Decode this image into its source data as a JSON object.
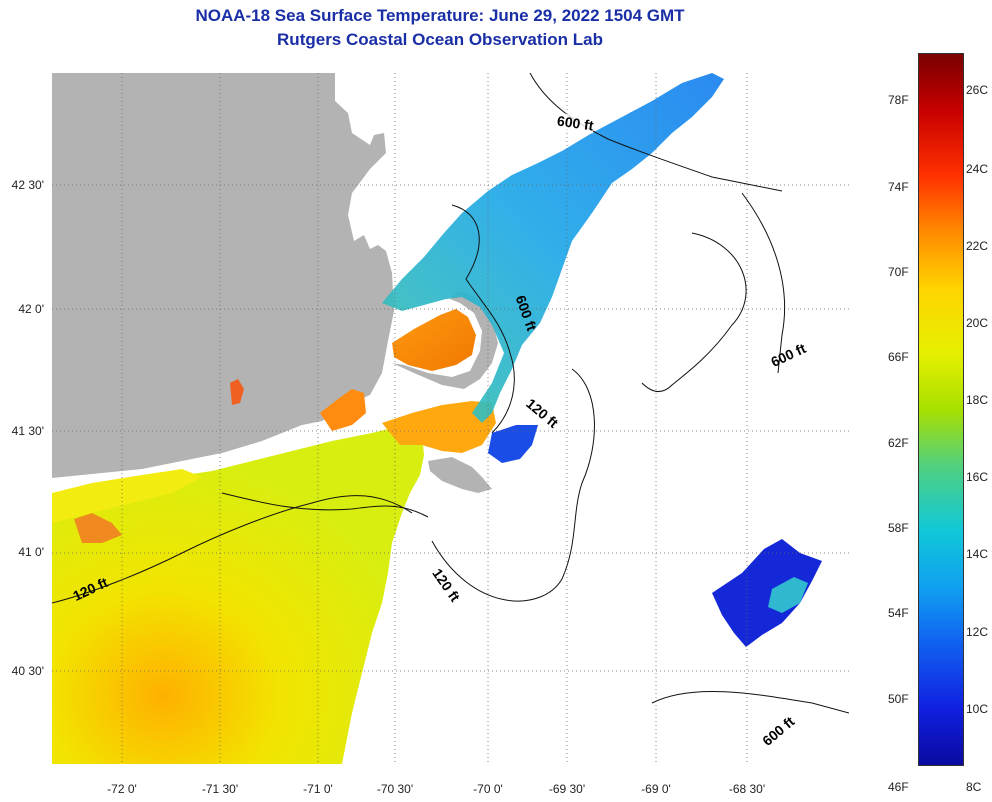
{
  "header": {
    "title": "NOAA-18 Sea Surface Temperature:  June 29, 2022 1504 GMT",
    "subtitle": "Rutgers Coastal Ocean Observation Lab"
  },
  "axes": {
    "lat_labels": [
      "42 30'",
      "42 0'",
      "41 30'",
      "41 0'",
      "40 30'"
    ],
    "lon_labels": [
      "-72 0'",
      "-71 30'",
      "-71 0'",
      "-70 30'",
      "-70 0'",
      "-69 30'",
      "-69 0'",
      "-68 30'"
    ]
  },
  "contours": {
    "labels": [
      "600 ft",
      "600 ft",
      "600 ft",
      "600 ft",
      "120 ft",
      "120 ft",
      "120 ft"
    ]
  },
  "colorbar": {
    "f_labels": [
      "78F",
      "74F",
      "70F",
      "66F",
      "62F",
      "58F",
      "54F",
      "50F",
      "46F"
    ],
    "c_labels": [
      "26C",
      "24C",
      "22C",
      "20C",
      "18C",
      "16C",
      "14C",
      "12C",
      "10C",
      "8C"
    ],
    "colors": [
      "#7a0000",
      "#c80000",
      "#ff3000",
      "#ff8a00",
      "#ffd400",
      "#e6f000",
      "#a8e000",
      "#50d080",
      "#10c8d8",
      "#10a0f0",
      "#1060f0",
      "#1020e0",
      "#0a0aa0"
    ]
  },
  "colors": {
    "land": "#b3b3b3",
    "title": "#1a2fa6",
    "grid": "#666666"
  }
}
